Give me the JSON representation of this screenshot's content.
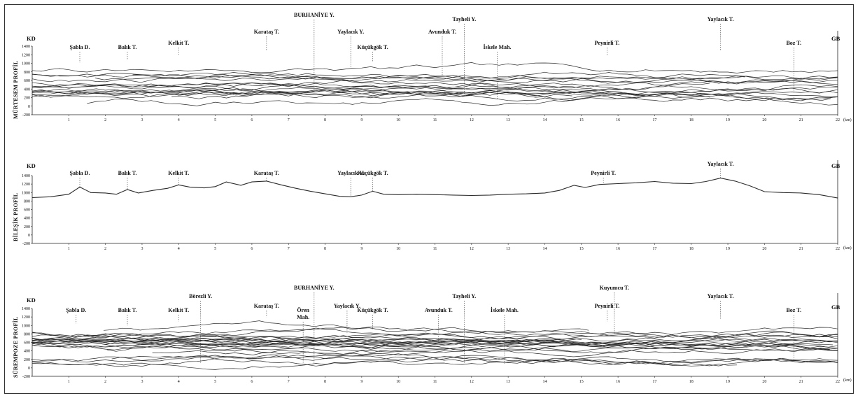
{
  "figure": {
    "ne_label": "KD",
    "sw_label": "GB",
    "km_unit": "(km)",
    "line_color": "#2a2a2a",
    "leader_color": "#444444"
  },
  "chart_data": [
    {
      "type": "line",
      "ylabel": "MÜRTESEM PROFİL",
      "xlim": [
        0,
        22
      ],
      "ylim": [
        -200,
        1400
      ],
      "x_ticks": [
        1,
        2,
        3,
        4,
        5,
        6,
        7,
        8,
        9,
        10,
        11,
        12,
        13,
        14,
        15,
        16,
        17,
        18,
        19,
        20,
        21,
        22
      ],
      "y_ticks": [
        1400,
        1200,
        1000,
        800,
        600,
        400,
        200,
        0,
        -200
      ],
      "annotations": [
        {
          "text": "Şabla D.",
          "x": 1.3,
          "y": 1020,
          "level": 2
        },
        {
          "text": "Balık T.",
          "x": 2.6,
          "y": 1080,
          "level": 2
        },
        {
          "text": "Kelkit T.",
          "x": 4.0,
          "y": 1200,
          "level": 1
        },
        {
          "text": "Karataş T.",
          "x": 6.4,
          "y": 1290,
          "level": 0
        },
        {
          "text": "BURHANİYE Y.",
          "x": 7.7,
          "y": 300,
          "level": -2
        },
        {
          "text": "Yaylacık Y.",
          "x": 8.7,
          "y": 900,
          "level": 0
        },
        {
          "text": "Küçükgök T.",
          "x": 9.3,
          "y": 1040,
          "level": 2
        },
        {
          "text": "Avunduk T.",
          "x": 11.2,
          "y": 700,
          "level": 0
        },
        {
          "text": "Tayheli Y.",
          "x": 11.8,
          "y": 220,
          "level": -1
        },
        {
          "text": "İskele Mah.",
          "x": 12.7,
          "y": 150,
          "level": 2
        },
        {
          "text": "Peynirli T.",
          "x": 15.7,
          "y": 1180,
          "level": 1
        },
        {
          "text": "Yaylacık T.",
          "x": 18.8,
          "y": 1310,
          "level": -1
        },
        {
          "text": "Boz T.",
          "x": 20.8,
          "y": 300,
          "level": 1
        }
      ],
      "n_profiles": 19
    },
    {
      "type": "line",
      "ylabel": "BİLEŞİK PROFİL",
      "xlim": [
        0,
        22
      ],
      "ylim": [
        -200,
        1400
      ],
      "x_ticks": [
        1,
        2,
        3,
        4,
        5,
        6,
        7,
        8,
        9,
        10,
        11,
        12,
        13,
        14,
        15,
        16,
        17,
        18,
        19,
        20,
        21,
        22
      ],
      "y_ticks": [
        1400,
        1200,
        1000,
        800,
        600,
        400,
        200,
        0,
        -200
      ],
      "series": [
        {
          "x": [
            0,
            0.5,
            1.0,
            1.3,
            1.6,
            2.0,
            2.3,
            2.6,
            2.9,
            3.3,
            3.7,
            4.0,
            4.3,
            4.7,
            5.0,
            5.3,
            5.7,
            6.0,
            6.4,
            6.8,
            7.2,
            7.6,
            8.0,
            8.4,
            8.7,
            9.0,
            9.3,
            9.6,
            10.0,
            10.5,
            11.0,
            11.5,
            12.0,
            12.5,
            13.0,
            13.5,
            14.0,
            14.4,
            14.8,
            15.1,
            15.5,
            16.0,
            16.5,
            17.0,
            17.5,
            18.0,
            18.4,
            18.8,
            19.2,
            19.6,
            20.0,
            20.5,
            21.0,
            21.5,
            22.0
          ],
          "y": [
            880,
            900,
            960,
            1130,
            1000,
            990,
            960,
            1070,
            990,
            1050,
            1100,
            1180,
            1130,
            1110,
            1140,
            1250,
            1170,
            1250,
            1270,
            1180,
            1100,
            1030,
            970,
            910,
            900,
            940,
            1030,
            960,
            950,
            960,
            950,
            940,
            930,
            940,
            960,
            970,
            990,
            1050,
            1170,
            1120,
            1190,
            1210,
            1230,
            1260,
            1220,
            1210,
            1260,
            1340,
            1270,
            1160,
            1020,
            1000,
            990,
            950,
            870
          ]
        }
      ],
      "annotations": [
        {
          "text": "Şabla D.",
          "x": 1.3,
          "y": 1130,
          "level": 2
        },
        {
          "text": "Balık T.",
          "x": 2.6,
          "y": 1070,
          "level": 2
        },
        {
          "text": "Kelkit T.",
          "x": 4.0,
          "y": 1180,
          "level": 2
        },
        {
          "text": "Karataş T.",
          "x": 6.4,
          "y": 1270,
          "level": 1
        },
        {
          "text": "Yaylacık Y.",
          "x": 8.7,
          "y": 900,
          "level": 0
        },
        {
          "text": "Küçükgök T.",
          "x": 9.3,
          "y": 1030,
          "level": 2
        },
        {
          "text": "Peynirli T.",
          "x": 15.6,
          "y": 1190,
          "level": 2
        },
        {
          "text": "Yaylacık T.",
          "x": 18.8,
          "y": 1340,
          "level": -1
        }
      ]
    },
    {
      "type": "line",
      "ylabel": "SÜREMPOZE PROFİL",
      "xlim": [
        0,
        22
      ],
      "ylim": [
        -200,
        1400
      ],
      "x_ticks": [
        1,
        2,
        3,
        4,
        5,
        6,
        7,
        8,
        9,
        10,
        11,
        12,
        13,
        14,
        15,
        16,
        17,
        18,
        19,
        20,
        21,
        22
      ],
      "y_ticks": [
        1400,
        1200,
        1000,
        800,
        600,
        400,
        200,
        0,
        -200
      ],
      "annotations": [
        {
          "text": "Şabla D.",
          "x": 1.2,
          "y": 1050,
          "level": 2
        },
        {
          "text": "Balık T.",
          "x": 2.6,
          "y": 1000,
          "level": 2
        },
        {
          "text": "Kelkit T.",
          "x": 4.0,
          "y": 1100,
          "level": 2
        },
        {
          "text": "Börezli Y.",
          "x": 4.6,
          "y": 100,
          "level": 0
        },
        {
          "text": "Karataş T.",
          "x": 6.4,
          "y": 1200,
          "level": 1
        },
        {
          "text": "Ören Mah.",
          "x": 7.4,
          "y": 100,
          "level": 2
        },
        {
          "text": "BURHANİYE Y.",
          "x": 7.7,
          "y": 100,
          "level": -1
        },
        {
          "text": "Yaylacık Y.",
          "x": 8.6,
          "y": 800,
          "level": 1
        },
        {
          "text": "Küçükgök T.",
          "x": 9.3,
          "y": 900,
          "level": 2
        },
        {
          "text": "Avunduk T.",
          "x": 11.1,
          "y": 600,
          "level": 2
        },
        {
          "text": "Tayheli Y.",
          "x": 11.8,
          "y": 100,
          "level": 0
        },
        {
          "text": "İskele Mah.",
          "x": 12.9,
          "y": 100,
          "level": 2
        },
        {
          "text": "Peynirli T.",
          "x": 15.7,
          "y": 1100,
          "level": 1
        },
        {
          "text": "Kuyumcu T.",
          "x": 15.9,
          "y": 800,
          "level": -1
        },
        {
          "text": "Yaylacık T.",
          "x": 18.8,
          "y": 1150,
          "level": 0
        },
        {
          "text": "Boz T.",
          "x": 20.8,
          "y": 200,
          "level": 2
        }
      ],
      "n_profiles": 26
    }
  ]
}
